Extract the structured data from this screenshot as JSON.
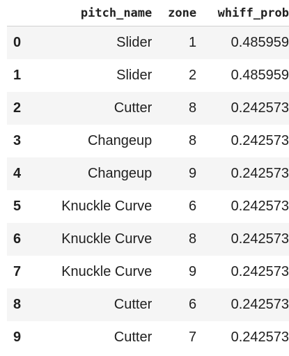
{
  "table": {
    "columns": {
      "index": "",
      "pitch_name": "pitch_name",
      "zone": "zone",
      "whiff_prob": "whiff_prob"
    },
    "rows": [
      {
        "index": "0",
        "pitch_name": "Slider",
        "zone": "1",
        "whiff_prob": "0.485959"
      },
      {
        "index": "1",
        "pitch_name": "Slider",
        "zone": "2",
        "whiff_prob": "0.485959"
      },
      {
        "index": "2",
        "pitch_name": "Cutter",
        "zone": "8",
        "whiff_prob": "0.242573"
      },
      {
        "index": "3",
        "pitch_name": "Changeup",
        "zone": "8",
        "whiff_prob": "0.242573"
      },
      {
        "index": "4",
        "pitch_name": "Changeup",
        "zone": "9",
        "whiff_prob": "0.242573"
      },
      {
        "index": "5",
        "pitch_name": "Knuckle Curve",
        "zone": "6",
        "whiff_prob": "0.242573"
      },
      {
        "index": "6",
        "pitch_name": "Knuckle Curve",
        "zone": "8",
        "whiff_prob": "0.242573"
      },
      {
        "index": "7",
        "pitch_name": "Knuckle Curve",
        "zone": "9",
        "whiff_prob": "0.242573"
      },
      {
        "index": "8",
        "pitch_name": "Cutter",
        "zone": "6",
        "whiff_prob": "0.242573"
      },
      {
        "index": "9",
        "pitch_name": "Cutter",
        "zone": "7",
        "whiff_prob": "0.242573"
      }
    ]
  }
}
